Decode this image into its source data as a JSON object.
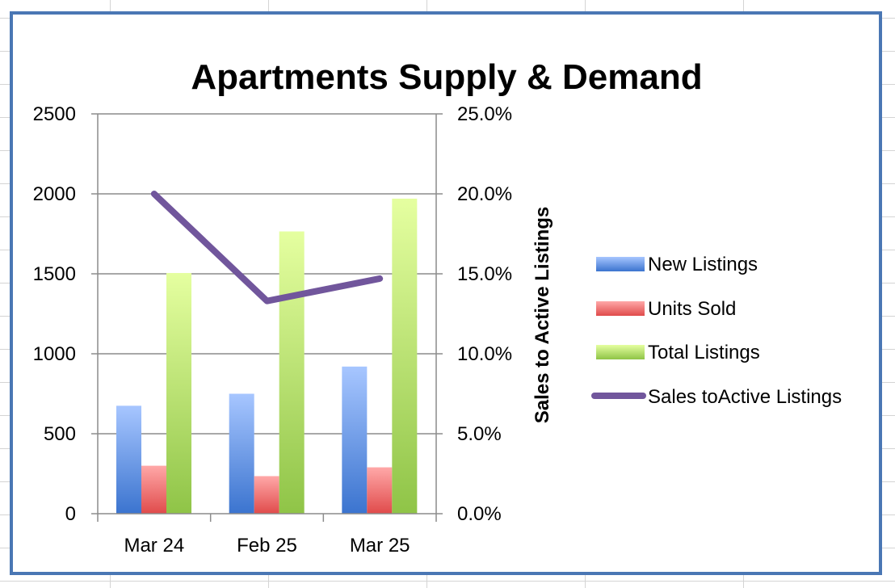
{
  "colors": {
    "frame": "#4a77b4",
    "new_listings": "#6b9de6",
    "units_sold": "#f06c6c",
    "total_listings": "#b4e06c",
    "sales_to_active": "#71569c"
  },
  "chart_data": {
    "type": "bar",
    "title": "Apartments Supply & Demand",
    "categories": [
      "Mar 24",
      "Feb 25",
      "Mar 25"
    ],
    "series": [
      {
        "name": "New Listings",
        "values": [
          675,
          750,
          920
        ],
        "axis": "left"
      },
      {
        "name": "Units Sold",
        "values": [
          300,
          235,
          290
        ],
        "axis": "left"
      },
      {
        "name": "Total Listings",
        "values": [
          1505,
          1765,
          1970
        ],
        "axis": "left"
      },
      {
        "name": "Sales toActive Listings",
        "type": "line",
        "values": [
          0.2,
          0.133,
          0.147
        ],
        "axis": "right"
      }
    ],
    "ylim": [
      0,
      2500
    ],
    "y_ticks": [
      "0",
      "500",
      "1000",
      "1500",
      "2000",
      "2500"
    ],
    "y2lim": [
      0,
      0.25
    ],
    "y2_ticks": [
      "0.0%",
      "5.0%",
      "10.0%",
      "15.0%",
      "20.0%",
      "25.0%"
    ],
    "y2label": "Sales to Active Listings",
    "xlabel": "",
    "ylabel": "",
    "grid": true,
    "legend": "right"
  }
}
